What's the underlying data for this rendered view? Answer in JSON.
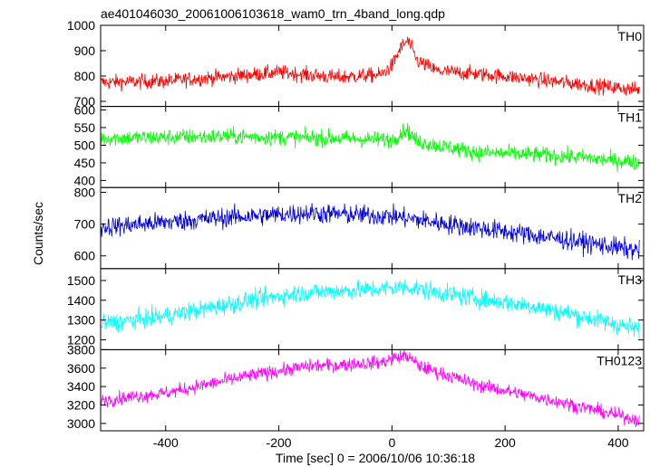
{
  "chart_data": {
    "type": "line",
    "title": "ae401046030_20061006103618_wam0_trn_4band_long.qdp",
    "xlabel": "Time [sec] 0 = 2006/10/06 10:36:18",
    "ylabel": "Counts/sec",
    "xlim": [
      -515,
      445
    ],
    "xticks": [
      -400,
      -200,
      0,
      200,
      400
    ],
    "panels": [
      {
        "name": "TH0",
        "color": "#ff0000",
        "ylim": [
          680,
          1000
        ],
        "yticks": [
          700,
          800,
          900,
          1000
        ],
        "keypoints": [
          [
            -515,
            775
          ],
          [
            -400,
            780
          ],
          [
            -250,
            805
          ],
          [
            -200,
            815
          ],
          [
            -100,
            795
          ],
          [
            -20,
            805
          ],
          [
            0,
            840
          ],
          [
            15,
            910
          ],
          [
            28,
            940
          ],
          [
            45,
            860
          ],
          [
            80,
            820
          ],
          [
            200,
            800
          ],
          [
            300,
            775
          ],
          [
            440,
            745
          ]
        ],
        "noise": 28
      },
      {
        "name": "TH1",
        "color": "#00ff00",
        "ylim": [
          380,
          610
        ],
        "yticks": [
          400,
          450,
          500,
          550,
          600
        ],
        "keypoints": [
          [
            -515,
            520
          ],
          [
            -300,
            525
          ],
          [
            -100,
            520
          ],
          [
            0,
            515
          ],
          [
            25,
            545
          ],
          [
            45,
            510
          ],
          [
            150,
            480
          ],
          [
            300,
            470
          ],
          [
            440,
            450
          ]
        ],
        "noise": 22
      },
      {
        "name": "TH2",
        "color": "#0000dd",
        "ylim": [
          560,
          815
        ],
        "yticks": [
          600,
          700,
          800
        ],
        "keypoints": [
          [
            -515,
            690
          ],
          [
            -300,
            720
          ],
          [
            -150,
            735
          ],
          [
            0,
            725
          ],
          [
            100,
            700
          ],
          [
            250,
            665
          ],
          [
            350,
            640
          ],
          [
            440,
            615
          ]
        ],
        "noise": 30
      },
      {
        "name": "TH3",
        "color": "#00ffff",
        "ylim": [
          1150,
          1560
        ],
        "yticks": [
          1200,
          1300,
          1400,
          1500
        ],
        "keypoints": [
          [
            -515,
            1280
          ],
          [
            -400,
            1320
          ],
          [
            -250,
            1400
          ],
          [
            -150,
            1440
          ],
          [
            0,
            1460
          ],
          [
            25,
            1470
          ],
          [
            100,
            1430
          ],
          [
            250,
            1370
          ],
          [
            350,
            1310
          ],
          [
            440,
            1250
          ]
        ],
        "noise": 45
      },
      {
        "name": "TH0123",
        "color": "#ff00ff",
        "ylim": [
          2920,
          3800
        ],
        "yticks": [
          3000,
          3200,
          3400,
          3600,
          3800
        ],
        "keypoints": [
          [
            -515,
            3250
          ],
          [
            -400,
            3330
          ],
          [
            -250,
            3520
          ],
          [
            -150,
            3620
          ],
          [
            -20,
            3660
          ],
          [
            10,
            3720
          ],
          [
            25,
            3740
          ],
          [
            50,
            3620
          ],
          [
            150,
            3420
          ],
          [
            300,
            3230
          ],
          [
            440,
            3030
          ]
        ],
        "noise": 70
      }
    ]
  }
}
